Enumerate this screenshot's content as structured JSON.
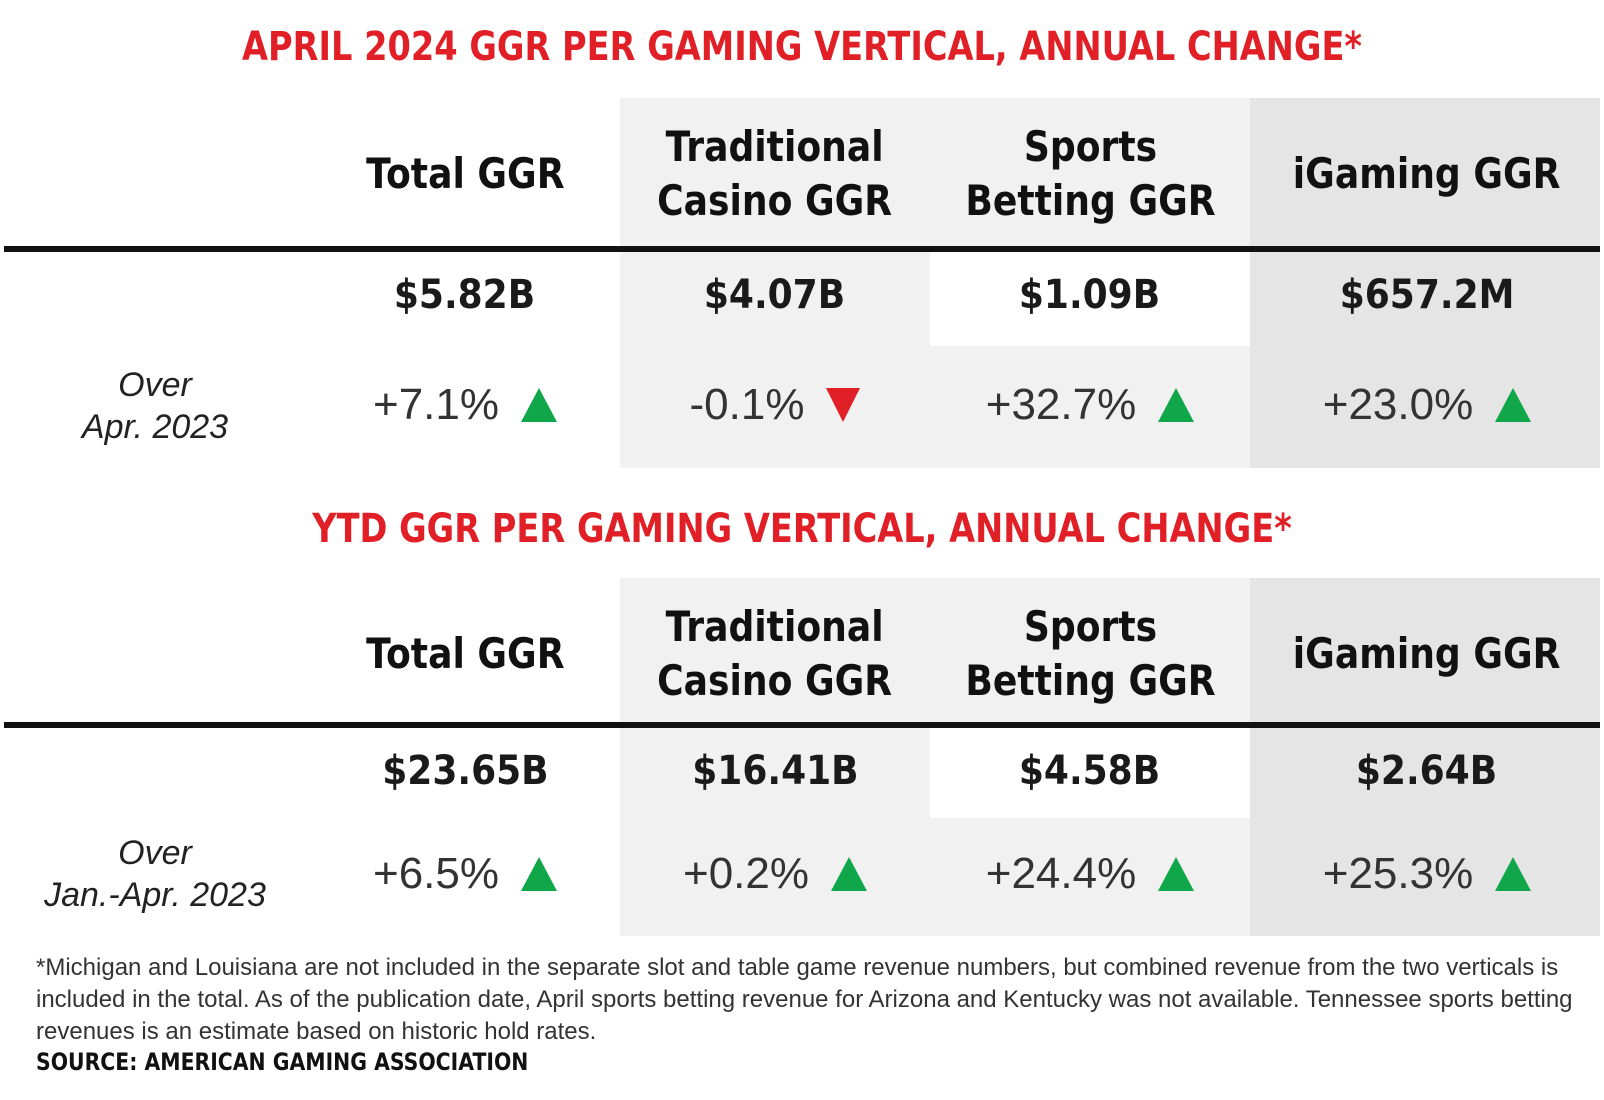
{
  "chart_data": [
    {
      "type": "table",
      "title": "APRIL 2024 GGR PER GAMING VERTICAL, ANNUAL CHANGE*",
      "row_label_line1": "Over",
      "row_label_line2": "Apr. 2023",
      "columns": [
        {
          "line1": "Total GGR",
          "line2": "",
          "value": "$5.82B",
          "change": "+7.1%",
          "direction": "up"
        },
        {
          "line1": "Traditional",
          "line2": "Casino GGR",
          "value": "$4.07B",
          "change": "-0.1%",
          "direction": "down"
        },
        {
          "line1": "Sports",
          "line2": "Betting GGR",
          "value": "$1.09B",
          "change": "+32.7%",
          "direction": "up"
        },
        {
          "line1": "iGaming GGR",
          "line2": "",
          "value": "$657.2M",
          "change": "+23.0%",
          "direction": "up"
        }
      ]
    },
    {
      "type": "table",
      "title": "YTD GGR PER GAMING VERTICAL, ANNUAL CHANGE*",
      "row_label_line1": "Over",
      "row_label_line2": "Jan.-Apr. 2023",
      "columns": [
        {
          "line1": "Total GGR",
          "line2": "",
          "value": "$23.65B",
          "change": "+6.5%",
          "direction": "up"
        },
        {
          "line1": "Traditional",
          "line2": "Casino GGR",
          "value": "$16.41B",
          "change": "+0.2%",
          "direction": "up"
        },
        {
          "line1": "Sports",
          "line2": "Betting GGR",
          "value": "$4.58B",
          "change": "+24.4%",
          "direction": "up"
        },
        {
          "line1": "iGaming GGR",
          "line2": "",
          "value": "$2.64B",
          "change": "+25.3%",
          "direction": "up"
        }
      ]
    }
  ],
  "colors": {
    "title": "#e11f26",
    "up_arrow": "#10a64a",
    "down_arrow": "#e11f26",
    "band_light": "#f1f1f1",
    "band_dark": "#e5e5e5"
  },
  "footnote": "*Michigan and Louisiana are not included in the separate slot and table game revenue numbers, but combined revenue from the two verticals is included in the total. As of the publication date, April sports betting revenue for Arizona and Kentucky was not available. Tennessee sports betting revenues is an estimate based on historic hold rates.",
  "source": "SOURCE: AMERICAN GAMING ASSOCIATION"
}
